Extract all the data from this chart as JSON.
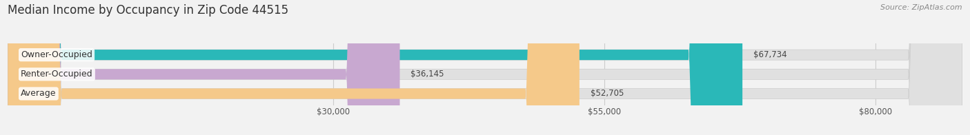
{
  "title": "Median Income by Occupancy in Zip Code 44515",
  "source": "Source: ZipAtlas.com",
  "categories": [
    "Owner-Occupied",
    "Renter-Occupied",
    "Average"
  ],
  "values": [
    67734,
    36145,
    52705
  ],
  "bar_colors": [
    "#2ab8b8",
    "#c8a8d0",
    "#f5c98a"
  ],
  "value_labels": [
    "$67,734",
    "$36,145",
    "$52,705"
  ],
  "x_ticks": [
    30000,
    55000,
    80000
  ],
  "x_tick_labels": [
    "$30,000",
    "$55,000",
    "$80,000"
  ],
  "xlim": [
    0,
    88000
  ],
  "background_color": "#f2f2f2",
  "bar_background_color": "#e0e0e0",
  "title_fontsize": 12,
  "source_fontsize": 8,
  "label_fontsize": 9,
  "value_fontsize": 8.5,
  "tick_fontsize": 8.5
}
